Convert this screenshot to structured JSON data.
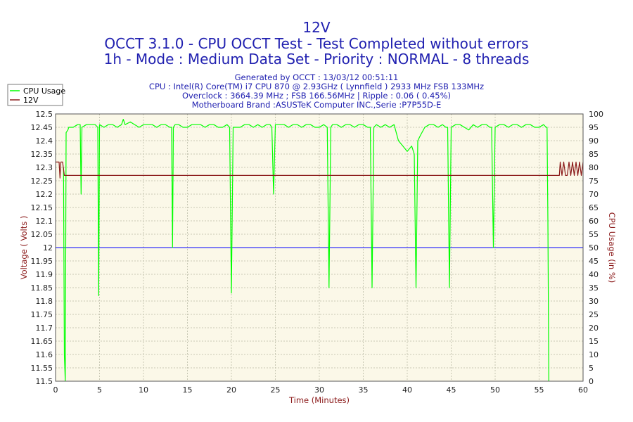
{
  "titles": {
    "t1": "12V",
    "t2": "OCCT 3.1.0 - CPU OCCT Test - Test Completed without errors",
    "t3": "1h - Mode : Medium Data Set - Priority : NORMAL - 8 threads"
  },
  "info": {
    "generated": "Generated by OCCT : 13/03/12 00:51:11",
    "cpu": "CPU : Intel(R) Core(TM) i7 CPU 870 @ 2.93GHz ( Lynnfield ) 2933 MHz FSB 133MHz",
    "overclock": "Overclock : 3664.39 MHz ; FSB 166.56MHz | Ripple : 0.06 ( 0.45%)",
    "motherboard": "Motherboard Brand :ASUSTeK Computer INC.,Serie :P7P55D-E"
  },
  "colors": {
    "background": "#fbf8e8",
    "grid": "#c8c8b4",
    "cpu_usage": "#00ff00",
    "voltage": "#8b1a1a",
    "nominal_line": "#0000ff",
    "text_blue": "#2020b0"
  },
  "chart_data": {
    "type": "line",
    "grid": true,
    "legend": {
      "placement": "top-left",
      "entries": [
        "CPU Usage",
        "12V"
      ]
    },
    "xlabel": "Time (Minutes)",
    "ylabel_left": "Voltage ( Volts )",
    "ylabel_right": "CPU Usage (in %)",
    "xlim": [
      0,
      60
    ],
    "ylim_left": [
      11.5,
      12.5
    ],
    "ylim_right": [
      0,
      100
    ],
    "x_ticks": [
      0,
      5,
      10,
      15,
      20,
      25,
      30,
      35,
      40,
      45,
      50,
      55,
      60
    ],
    "y_left_ticks": [
      "11.5",
      "11.55",
      "11.6",
      "11.65",
      "11.7",
      "11.75",
      "11.8",
      "11.85",
      "11.9",
      "11.95",
      "12",
      "12.05",
      "12.1",
      "12.15",
      "12.2",
      "12.25",
      "12.3",
      "12.35",
      "12.4",
      "12.45",
      "12.5"
    ],
    "y_right_ticks": [
      0,
      5,
      10,
      15,
      20,
      25,
      30,
      35,
      40,
      45,
      50,
      55,
      60,
      65,
      70,
      75,
      80,
      85,
      90,
      95,
      100
    ],
    "reference_line": {
      "axis": "left",
      "value": 12.0
    },
    "series": [
      {
        "name": "CPU Usage",
        "axis": "right",
        "x": [
          0.9,
          1.0,
          1.1,
          1.2,
          1.4,
          1.5,
          2,
          2.5,
          2.8,
          2.9,
          3.0,
          3.5,
          4,
          4.5,
          4.8,
          4.9,
          5.0,
          5.5,
          6,
          6.5,
          7,
          7.5,
          7.7,
          7.9,
          8.5,
          9,
          9.5,
          10,
          10.5,
          11,
          11.5,
          12,
          12.5,
          13,
          13.2,
          13.3,
          13.4,
          13.6,
          14,
          14.5,
          15,
          15.5,
          16,
          16.5,
          17,
          17.5,
          18,
          18.5,
          19,
          19.5,
          19.8,
          20.0,
          20.2,
          20.5,
          21,
          21.5,
          22,
          22.5,
          23,
          23.5,
          24,
          24.4,
          24.6,
          24.8,
          25,
          25.5,
          26,
          26.5,
          27,
          27.5,
          28,
          28.5,
          29,
          29.5,
          30,
          30.5,
          30.9,
          31.1,
          31.3,
          31.5,
          32,
          32.5,
          33,
          33.5,
          34,
          34.5,
          35,
          35.5,
          35.8,
          36.0,
          36.2,
          36.5,
          37,
          37.5,
          38,
          38.5,
          39,
          39.5,
          40,
          40.5,
          40.8,
          41.0,
          41.2,
          41.5,
          42,
          42.5,
          43,
          43.5,
          44,
          44.4,
          44.6,
          44.8,
          45,
          45.5,
          46,
          46.5,
          47,
          47.5,
          48,
          48.5,
          49,
          49.4,
          49.6,
          49.8,
          50,
          50.5,
          51,
          51.5,
          52,
          52.5,
          53,
          53.5,
          54,
          54.5,
          55,
          55.5,
          55.8,
          55.9,
          56.0,
          56.1
        ],
        "values": [
          80,
          10,
          0,
          93,
          94,
          95,
          95,
          96,
          96,
          70,
          95,
          96,
          96,
          96,
          95,
          32,
          96,
          95,
          96,
          96,
          95,
          96,
          98,
          96,
          97,
          96,
          95,
          96,
          96,
          96,
          95,
          96,
          96,
          95,
          95,
          50,
          95,
          96,
          96,
          95,
          95,
          96,
          96,
          96,
          95,
          96,
          96,
          95,
          95,
          96,
          95,
          33,
          95,
          95,
          95,
          96,
          96,
          95,
          96,
          95,
          96,
          96,
          95,
          70,
          96,
          96,
          96,
          95,
          96,
          96,
          95,
          96,
          96,
          95,
          95,
          96,
          95,
          35,
          95,
          96,
          96,
          95,
          96,
          96,
          95,
          96,
          96,
          95,
          95,
          35,
          95,
          96,
          95,
          96,
          95,
          96,
          90,
          88,
          86,
          88,
          85,
          35,
          90,
          92,
          95,
          96,
          96,
          95,
          96,
          95,
          95,
          35,
          95,
          96,
          96,
          95,
          94,
          96,
          95,
          96,
          96,
          95,
          95,
          50,
          95,
          96,
          96,
          95,
          96,
          96,
          95,
          96,
          96,
          95,
          95,
          96,
          95,
          95,
          60,
          0
        ]
      },
      {
        "name": "12V",
        "axis": "left",
        "x": [
          0,
          0.4,
          0.5,
          0.6,
          0.7,
          0.8,
          1.0,
          1.2,
          5,
          10,
          20,
          30,
          40,
          50,
          56,
          57.3,
          57.4,
          57.6,
          57.8,
          58,
          58.2,
          58.4,
          58.6,
          58.8,
          59,
          59.2,
          59.4,
          59.6,
          59.8,
          60
        ],
        "values": [
          12.32,
          12.32,
          12.26,
          12.32,
          12.32,
          12.32,
          12.27,
          12.27,
          12.27,
          12.27,
          12.27,
          12.27,
          12.27,
          12.27,
          12.27,
          12.27,
          12.32,
          12.27,
          12.32,
          12.27,
          12.27,
          12.32,
          12.27,
          12.32,
          12.27,
          12.32,
          12.27,
          12.32,
          12.27,
          12.32
        ]
      }
    ]
  }
}
